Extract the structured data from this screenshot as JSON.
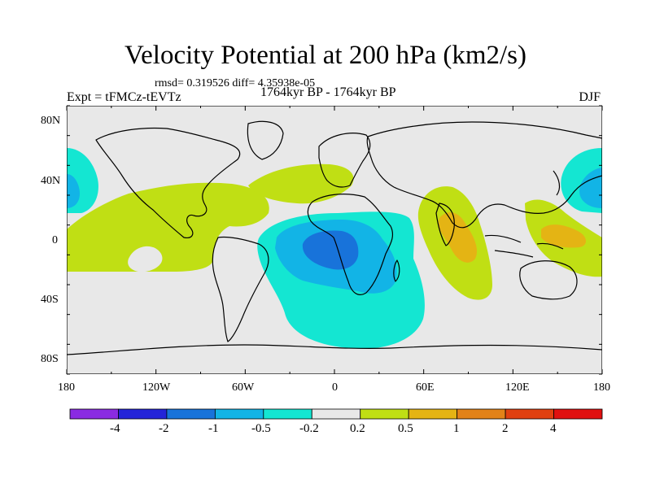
{
  "title": "Velocity Potential at 200 hPa (km2/s)",
  "stats": "rmsd= 0.319526 diff= 4.35938e-05",
  "experiment": "Expt = tFMCz-tEVTz",
  "period": "1764kyr BP - 1764kyr BP",
  "season": "DJF",
  "lat_ticks": [
    "80N",
    "40N",
    "0",
    "40S",
    "80S"
  ],
  "lon_ticks": [
    "180",
    "120W",
    "60W",
    "0",
    "60E",
    "120E",
    "180"
  ],
  "colorbar": {
    "labels": [
      "-4",
      "-2",
      "-1",
      "-0.5",
      "-0.2",
      "0.2",
      "0.5",
      "1",
      "2",
      "4"
    ],
    "colors": [
      "#8a2be2",
      "#2424d8",
      "#1873da",
      "#12b4e6",
      "#14e6d2",
      "#e8e8e8",
      "#c0df14",
      "#e4b414",
      "#e28218",
      "#e04010",
      "#e01010"
    ]
  },
  "colors": {
    "land_background": "#e8e8e8",
    "negative_weak": "#14e6d2",
    "negative_mid": "#12b4e6",
    "negative_strong": "#1873da",
    "positive_weak": "#c0df14",
    "positive_mid": "#e4b414"
  }
}
